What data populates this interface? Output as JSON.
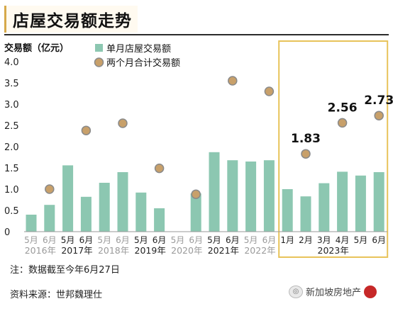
{
  "header": {
    "title": "店屋交易额走势"
  },
  "footnote": "注：数据截至今年6月27日",
  "source": "资料来源：世邦魏理仕",
  "watermark": {
    "text": "新加坡房地产",
    "icon": "wechat-icon"
  },
  "colors": {
    "bar": "#8cc7b1",
    "dot_fill": "#c8a06a",
    "dot_stroke": "#8a8a8a",
    "highlight_border": "#e8c35a",
    "axis_text": "#222222",
    "muted_text": "#9a9a9a"
  },
  "chart_data": {
    "type": "bar",
    "ylabel": "交易额（亿元）",
    "ylim": [
      0,
      4.0
    ],
    "yticks": [
      "0",
      "0.5",
      "1.0",
      "1.5",
      "2.0",
      "2.5",
      "3.0",
      "3.5",
      "4.0"
    ],
    "grid": false,
    "legend_position": "top",
    "categories": [
      "5月",
      "6月",
      "5月",
      "6月",
      "5月",
      "6月",
      "5月",
      "6月",
      "5月",
      "6月",
      "5月",
      "6月",
      "5月",
      "6月",
      "1月",
      "2月",
      "3月",
      "4月",
      "5月",
      "6月"
    ],
    "groups": [
      {
        "label": "2016年",
        "start": 0,
        "end": 1,
        "muted": true
      },
      {
        "label": "2017年",
        "start": 2,
        "end": 3,
        "muted": false
      },
      {
        "label": "2018年",
        "start": 4,
        "end": 5,
        "muted": true
      },
      {
        "label": "2019年",
        "start": 6,
        "end": 7,
        "muted": false
      },
      {
        "label": "2020年",
        "start": 8,
        "end": 9,
        "muted": true
      },
      {
        "label": "2021年",
        "start": 10,
        "end": 11,
        "muted": false
      },
      {
        "label": "2022年",
        "start": 12,
        "end": 13,
        "muted": true
      },
      {
        "label": "2023年",
        "start": 14,
        "end": 19,
        "muted": false
      }
    ],
    "highlight_range": [
      14,
      19
    ],
    "series": [
      {
        "name": "单月店屋交易额",
        "kind": "bar",
        "values": [
          0.4,
          0.63,
          1.56,
          0.82,
          1.15,
          1.4,
          0.92,
          0.55,
          0.0,
          0.9,
          1.87,
          1.68,
          1.65,
          1.68,
          1.0,
          0.83,
          1.14,
          1.41,
          1.32,
          1.4
        ]
      },
      {
        "name": "两个月合计交易额",
        "kind": "dot",
        "points": [
          {
            "index": 1,
            "value": 1.0
          },
          {
            "index": 3,
            "value": 2.38
          },
          {
            "index": 5,
            "value": 2.55
          },
          {
            "index": 7,
            "value": 1.49
          },
          {
            "index": 9,
            "value": 0.88
          },
          {
            "index": 11,
            "value": 3.55
          },
          {
            "index": 13,
            "value": 3.3
          },
          {
            "index": 15,
            "value": 1.83,
            "label": "1.83"
          },
          {
            "index": 17,
            "value": 2.56,
            "label": "2.56"
          },
          {
            "index": 19,
            "value": 2.73,
            "label": "2.73"
          }
        ]
      }
    ]
  }
}
